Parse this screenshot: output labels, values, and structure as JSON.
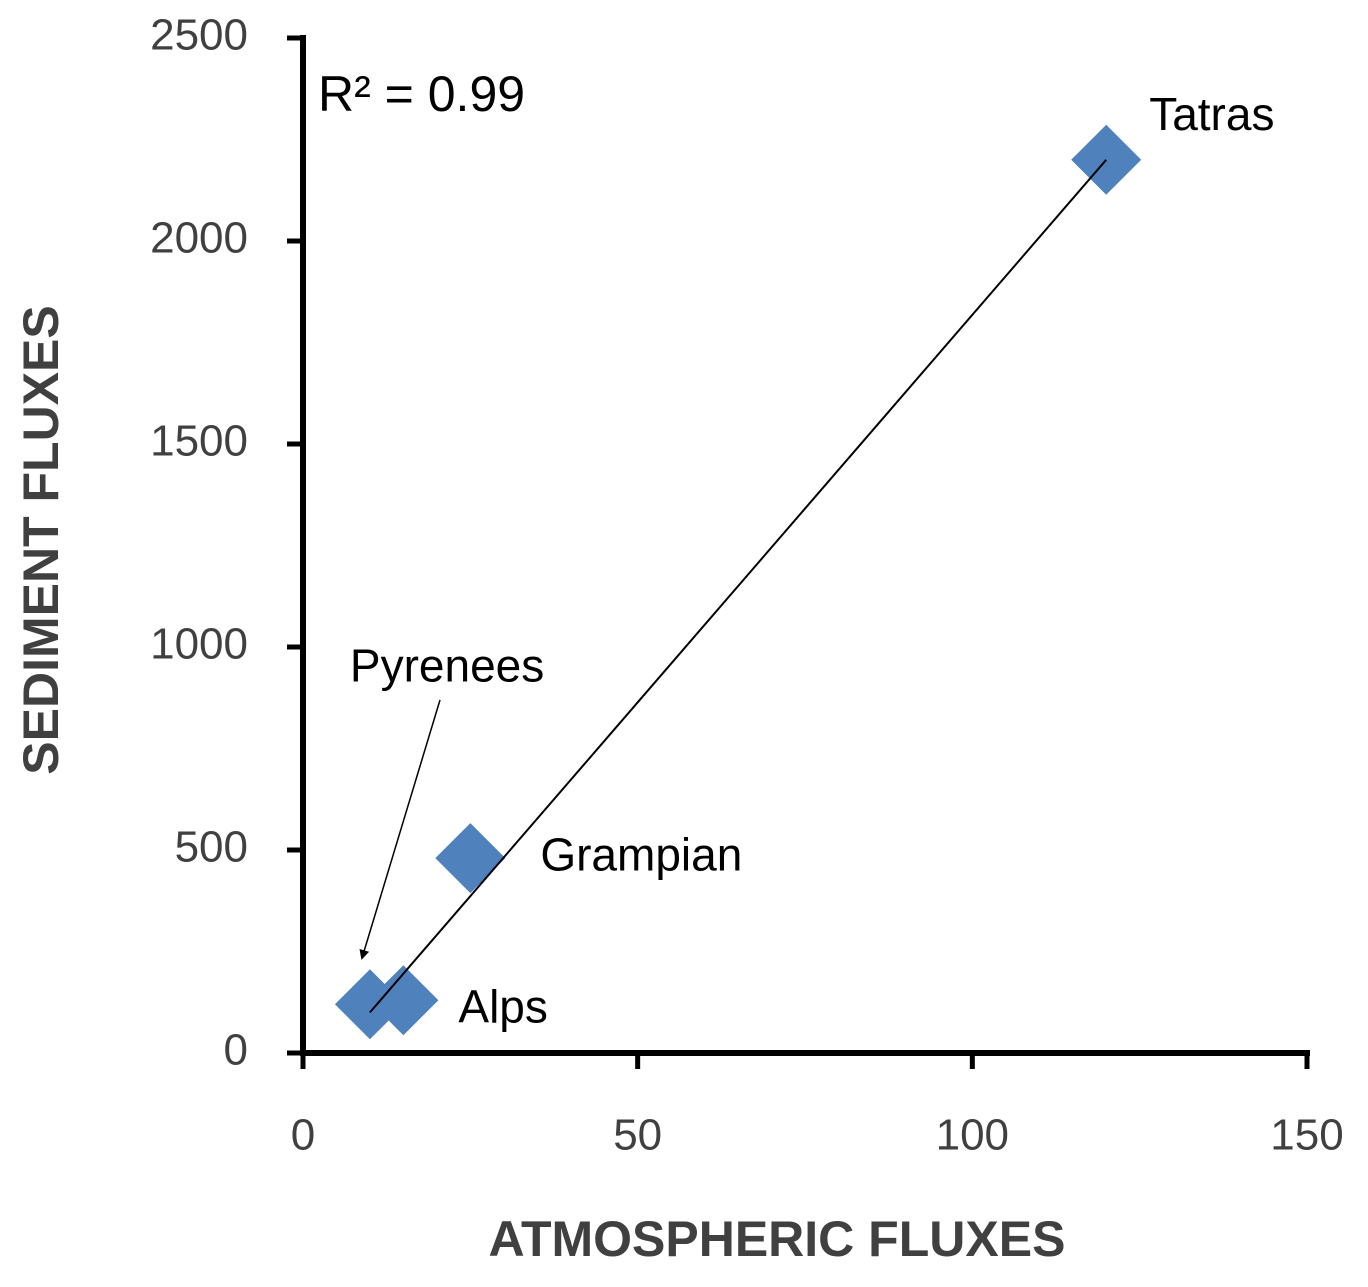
{
  "chart_data": {
    "type": "scatter",
    "x_label": "ATMOSPHERIC FLUXES",
    "y_label": "SEDIMENT FLUXES",
    "annotation": "R² = 0.99",
    "labels": [
      "Tatras",
      "Grampian",
      "Pyrenees",
      "Alps"
    ],
    "x": [
      120,
      25,
      10,
      15
    ],
    "values": [
      2200,
      480,
      120,
      130
    ],
    "color": "#4f81bd",
    "trendline": {
      "x": [
        10,
        120
      ],
      "y": [
        100,
        2200
      ]
    },
    "xlim": [
      0,
      150
    ],
    "xticks": [
      0,
      50,
      100,
      150
    ],
    "ylim": [
      0,
      2500
    ],
    "yticks": [
      0,
      500,
      1000,
      1500,
      2000,
      2500
    ]
  }
}
